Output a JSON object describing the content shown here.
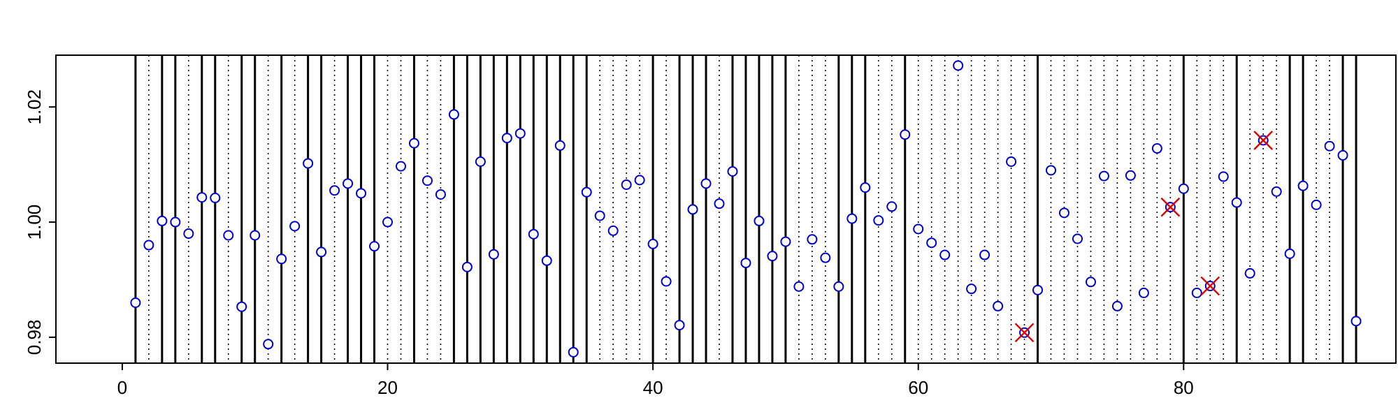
{
  "chart_data": {
    "type": "scatter",
    "title": "",
    "xlabel": "",
    "ylabel": "",
    "xlim": [
      -5,
      96
    ],
    "ylim": [
      0.9755,
      1.029
    ],
    "x_ticks": [
      0,
      20,
      40,
      60,
      80
    ],
    "x_tick_labels": [
      "0",
      "20",
      "40",
      "60",
      "80"
    ],
    "y_ticks": [
      0.98,
      1.0,
      1.02
    ],
    "y_tick_labels": [
      "0.98",
      "1.00",
      "1.02"
    ],
    "grid": false,
    "legend": "none",
    "colors": {
      "points": "#0000cc",
      "flagged": "#dd0000",
      "lines": "#000000"
    },
    "points": [
      {
        "x": 1,
        "y": 0.986
      },
      {
        "x": 2,
        "y": 0.996
      },
      {
        "x": 3,
        "y": 1.0002
      },
      {
        "x": 4,
        "y": 1.0
      },
      {
        "x": 5,
        "y": 0.998
      },
      {
        "x": 6,
        "y": 1.0043
      },
      {
        "x": 7,
        "y": 1.0042
      },
      {
        "x": 8,
        "y": 0.9977
      },
      {
        "x": 9,
        "y": 0.9853
      },
      {
        "x": 10,
        "y": 0.9977
      },
      {
        "x": 11,
        "y": 0.9788
      },
      {
        "x": 12,
        "y": 0.9936
      },
      {
        "x": 13,
        "y": 0.9993
      },
      {
        "x": 14,
        "y": 1.0102
      },
      {
        "x": 15,
        "y": 0.9948
      },
      {
        "x": 16,
        "y": 1.0055
      },
      {
        "x": 17,
        "y": 1.0067
      },
      {
        "x": 18,
        "y": 1.005
      },
      {
        "x": 19,
        "y": 0.9958
      },
      {
        "x": 20,
        "y": 1.0
      },
      {
        "x": 21,
        "y": 1.0097
      },
      {
        "x": 22,
        "y": 1.0137
      },
      {
        "x": 23,
        "y": 1.0072
      },
      {
        "x": 24,
        "y": 1.0048
      },
      {
        "x": 25,
        "y": 1.0187
      },
      {
        "x": 26,
        "y": 0.9922
      },
      {
        "x": 27,
        "y": 1.0105
      },
      {
        "x": 28,
        "y": 0.9944
      },
      {
        "x": 29,
        "y": 1.0146
      },
      {
        "x": 30,
        "y": 1.0154
      },
      {
        "x": 31,
        "y": 0.9979
      },
      {
        "x": 32,
        "y": 0.9933
      },
      {
        "x": 33,
        "y": 1.0133
      },
      {
        "x": 34,
        "y": 0.9774
      },
      {
        "x": 35,
        "y": 1.0052
      },
      {
        "x": 36,
        "y": 1.0011
      },
      {
        "x": 37,
        "y": 0.9985
      },
      {
        "x": 38,
        "y": 1.0065
      },
      {
        "x": 39,
        "y": 1.0073
      },
      {
        "x": 40,
        "y": 0.9962
      },
      {
        "x": 41,
        "y": 0.9897
      },
      {
        "x": 42,
        "y": 0.9821
      },
      {
        "x": 43,
        "y": 1.0022
      },
      {
        "x": 44,
        "y": 1.0067
      },
      {
        "x": 45,
        "y": 1.0032
      },
      {
        "x": 46,
        "y": 1.0088
      },
      {
        "x": 47,
        "y": 0.9929
      },
      {
        "x": 48,
        "y": 1.0002
      },
      {
        "x": 49,
        "y": 0.9941
      },
      {
        "x": 50,
        "y": 0.9966
      },
      {
        "x": 51,
        "y": 0.9888
      },
      {
        "x": 52,
        "y": 0.997
      },
      {
        "x": 53,
        "y": 0.9938
      },
      {
        "x": 54,
        "y": 0.9888
      },
      {
        "x": 55,
        "y": 1.0006
      },
      {
        "x": 56,
        "y": 1.006
      },
      {
        "x": 57,
        "y": 1.0003
      },
      {
        "x": 58,
        "y": 1.0027
      },
      {
        "x": 59,
        "y": 1.0152
      },
      {
        "x": 60,
        "y": 0.9988
      },
      {
        "x": 61,
        "y": 0.9964
      },
      {
        "x": 62,
        "y": 0.9943
      },
      {
        "x": 63,
        "y": 1.0272
      },
      {
        "x": 64,
        "y": 0.9884
      },
      {
        "x": 65,
        "y": 0.9943
      },
      {
        "x": 66,
        "y": 0.9854
      },
      {
        "x": 67,
        "y": 1.0105
      },
      {
        "x": 68,
        "y": 0.9808,
        "flagged": true
      },
      {
        "x": 69,
        "y": 0.9882
      },
      {
        "x": 70,
        "y": 1.009
      },
      {
        "x": 71,
        "y": 1.0016
      },
      {
        "x": 72,
        "y": 0.9971
      },
      {
        "x": 73,
        "y": 0.9896
      },
      {
        "x": 74,
        "y": 1.008
      },
      {
        "x": 75,
        "y": 0.9854
      },
      {
        "x": 76,
        "y": 1.0081
      },
      {
        "x": 77,
        "y": 0.9877
      },
      {
        "x": 78,
        "y": 1.0128
      },
      {
        "x": 79,
        "y": 1.0026,
        "flagged": true
      },
      {
        "x": 80,
        "y": 1.0058
      },
      {
        "x": 81,
        "y": 0.9877
      },
      {
        "x": 82,
        "y": 0.9889,
        "flagged": true
      },
      {
        "x": 83,
        "y": 1.0079
      },
      {
        "x": 84,
        "y": 1.0034
      },
      {
        "x": 85,
        "y": 0.9911
      },
      {
        "x": 86,
        "y": 1.0142,
        "flagged": true
      },
      {
        "x": 87,
        "y": 1.0053
      },
      {
        "x": 88,
        "y": 0.9945
      },
      {
        "x": 89,
        "y": 1.0063
      },
      {
        "x": 90,
        "y": 1.003
      },
      {
        "x": 91,
        "y": 1.0132
      },
      {
        "x": 92,
        "y": 1.0116
      },
      {
        "x": 93,
        "y": 0.9828
      }
    ],
    "solid_lines": [
      1,
      3,
      4,
      6,
      7,
      9,
      10,
      12,
      14,
      15,
      17,
      18,
      19,
      22,
      25,
      26,
      27,
      28,
      29,
      30,
      31,
      32,
      33,
      34,
      35,
      40,
      42,
      43,
      44,
      46,
      47,
      48,
      49,
      50,
      54,
      55,
      56,
      59,
      69,
      80,
      84,
      88,
      89,
      92,
      93
    ],
    "dotted_lines": [
      2,
      5,
      8,
      11,
      13,
      16,
      20,
      21,
      23,
      24,
      36,
      37,
      38,
      39,
      41,
      45,
      51,
      52,
      53,
      57,
      58,
      60,
      61,
      62,
      63,
      64,
      65,
      66,
      67,
      68,
      70,
      71,
      72,
      73,
      74,
      75,
      76,
      77,
      78,
      79,
      81,
      82,
      83,
      85,
      86,
      87,
      90,
      91
    ]
  }
}
